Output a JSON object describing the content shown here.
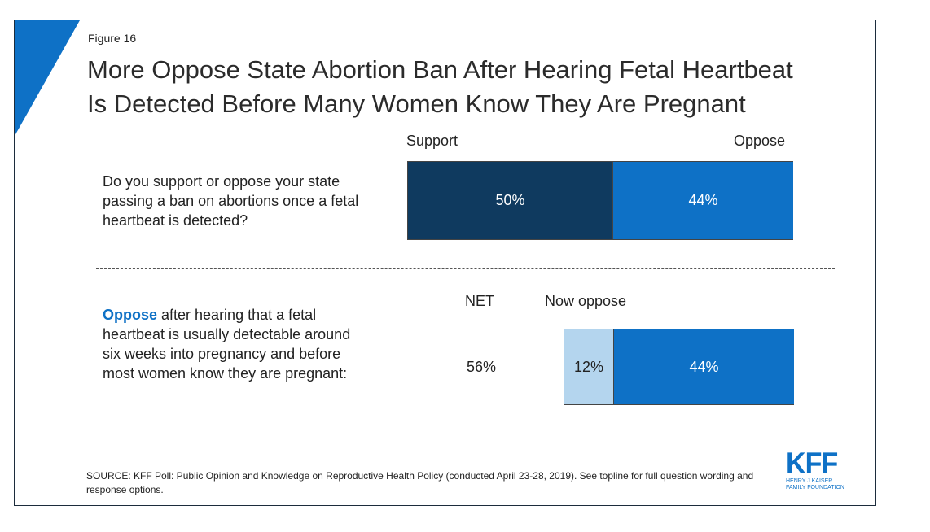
{
  "figure_label": "Figure 16",
  "title_lines": [
    "More Oppose State Abortion Ban After Hearing Fetal Heartbeat",
    "Is Detected Before Many Women Know They Are Pregnant"
  ],
  "colors": {
    "support": "#0f3a5f",
    "oppose": "#0e71c6",
    "now_oppose_light": "#b4d5ee",
    "accent": "#0e71c6"
  },
  "chart_data": [
    {
      "type": "bar",
      "orientation": "horizontal",
      "stacked": true,
      "question": "Do you support or oppose your state passing a ban on abortions once a fetal heartbeat is detected?",
      "column_headers": [
        "Support",
        "Oppose"
      ],
      "series": [
        {
          "name": "Support",
          "values": [
            50
          ],
          "label": "50%"
        },
        {
          "name": "Oppose",
          "values": [
            44
          ],
          "label": "44%"
        }
      ]
    },
    {
      "type": "bar",
      "orientation": "horizontal",
      "stacked": true,
      "question_highlight": "Oppose",
      "question_rest": " after hearing that a fetal heartbeat is usually detectable around six weeks into pregnancy and before most women know they are pregnant:",
      "column_headers": [
        "NET",
        "Now oppose"
      ],
      "net_value": 56,
      "net_label": "56%",
      "series": [
        {
          "name": "Now oppose",
          "values": [
            12
          ],
          "label": "12%"
        },
        {
          "name": "Oppose",
          "values": [
            44
          ],
          "label": "44%"
        }
      ]
    }
  ],
  "source_text": "SOURCE: KFF Poll: Public Opinion and Knowledge on Reproductive Health Policy (conducted April 23-28, 2019). See topline for full question wording and response options.",
  "logo": {
    "mark": "KFF",
    "sub_line1": "HENRY J KAISER",
    "sub_line2": "FAMILY FOUNDATION"
  }
}
